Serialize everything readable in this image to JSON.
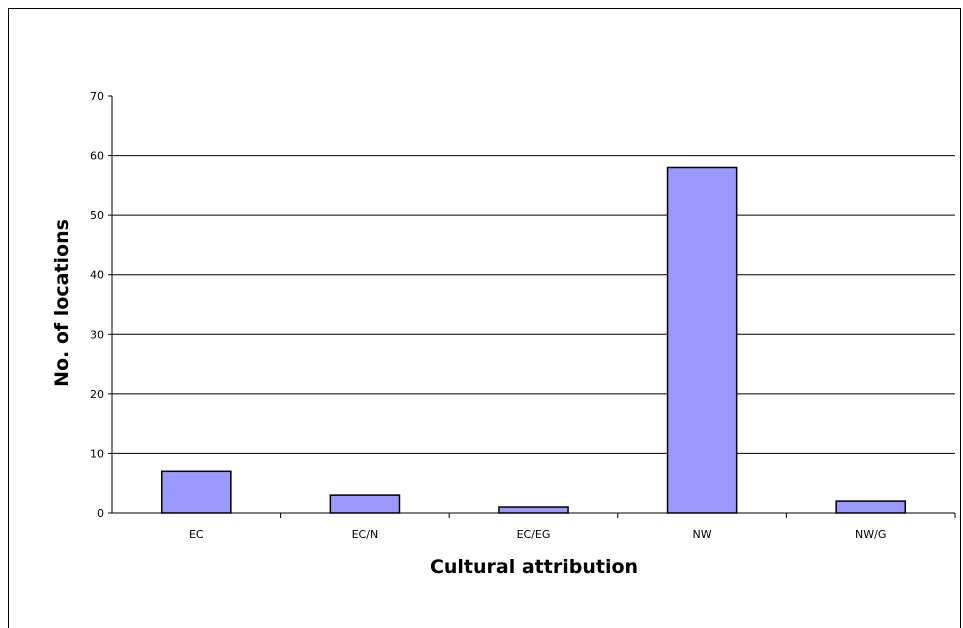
{
  "chart_data": {
    "type": "bar",
    "title": "",
    "xlabel": "Cultural attribution",
    "ylabel": "No. of locations",
    "categories": [
      "EC",
      "EC/N",
      "EC/EG",
      "NW",
      "NW/G"
    ],
    "values": [
      7,
      3,
      1,
      58,
      2
    ],
    "ylim": [
      0,
      70
    ],
    "yticks": [
      0,
      10,
      20,
      30,
      40,
      50,
      60,
      70
    ],
    "grid": true,
    "legend": "none",
    "colors": {
      "bar_fill": "#9999ff",
      "bar_stroke": "#000000",
      "grid": "#000000"
    }
  }
}
